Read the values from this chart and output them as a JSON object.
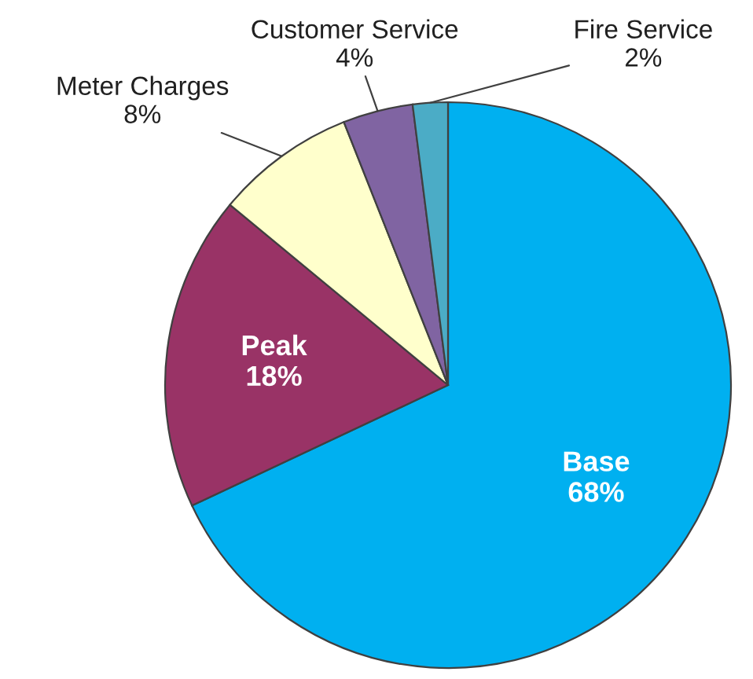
{
  "chart_data": {
    "type": "pie",
    "categories": [
      "Base",
      "Peak",
      "Meter Charges",
      "Customer Service",
      "Fire Service"
    ],
    "values": [
      68,
      18,
      8,
      4,
      2
    ],
    "colors": [
      "#00b0f0",
      "#993366",
      "#ffffcc",
      "#8064a2",
      "#4bacc6"
    ],
    "value_labels": [
      "68%",
      "18%",
      "8%",
      "4%",
      "2%"
    ],
    "legend": false
  }
}
